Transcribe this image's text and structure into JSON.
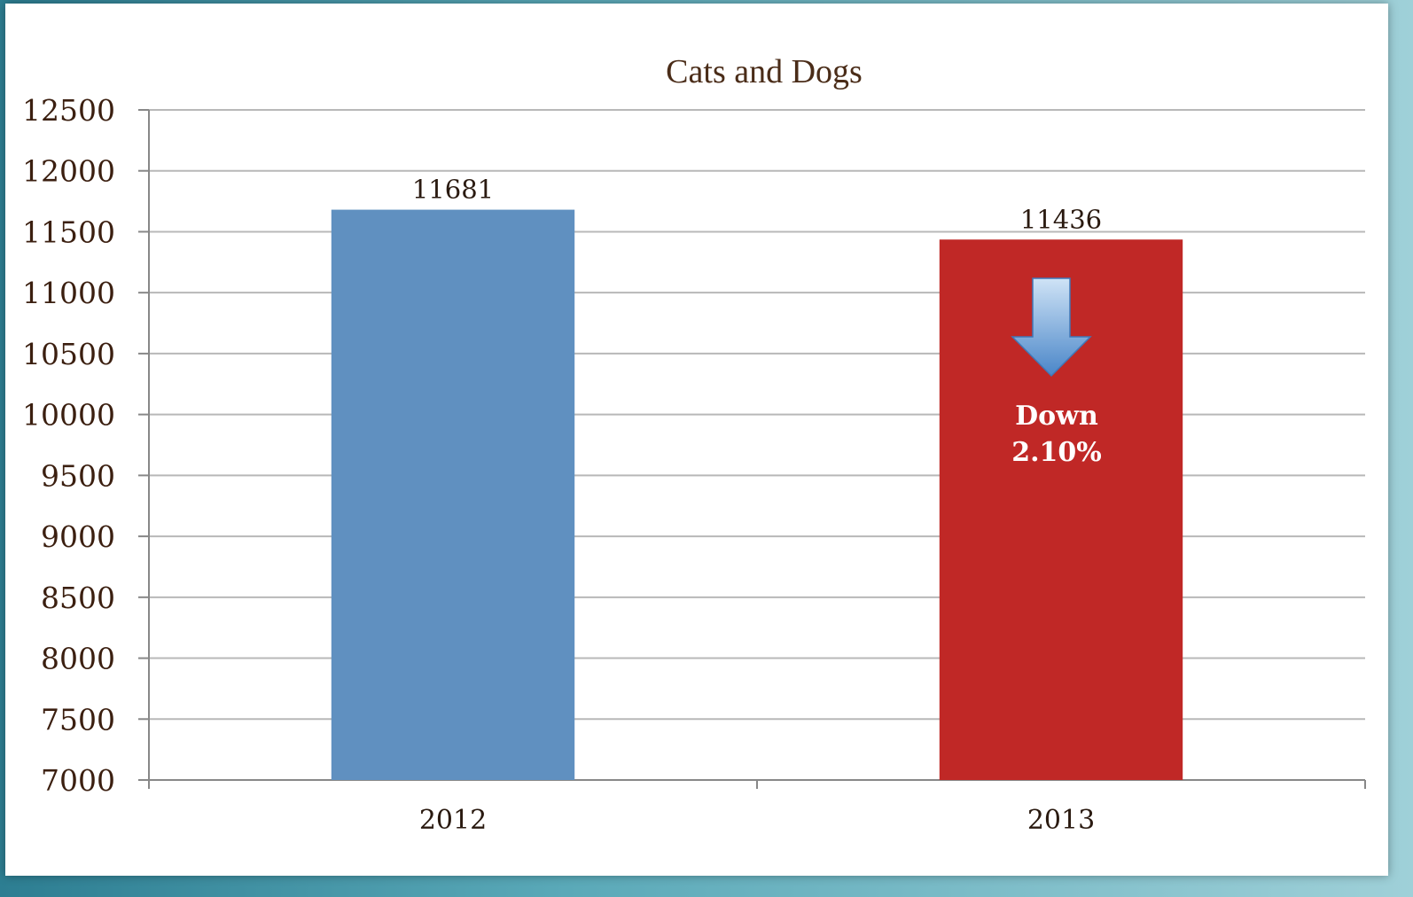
{
  "chart_data": {
    "type": "bar",
    "title": "Cats and Dogs",
    "categories": [
      "2012",
      "2013"
    ],
    "values": [
      11681,
      11436
    ],
    "data_labels": [
      "11681",
      "11436"
    ],
    "bar_colors": [
      "#6090c0",
      "#c02826"
    ],
    "ylim": [
      7000,
      12500
    ],
    "y_ticks": [
      "12500",
      "12000",
      "11500",
      "11000",
      "10500",
      "10000",
      "9500",
      "9000",
      "8500",
      "8000",
      "7500",
      "7000"
    ],
    "grid": true,
    "legend": "none",
    "annotation": {
      "category": "2013",
      "line1": "Down",
      "line2": "2.10%",
      "icon": "down-arrow-icon"
    }
  },
  "colors": {
    "title": "#4a2c18",
    "ticks": "#3b1f10",
    "grid": "#b8b8b8",
    "arrow": "#7fb0e0"
  }
}
